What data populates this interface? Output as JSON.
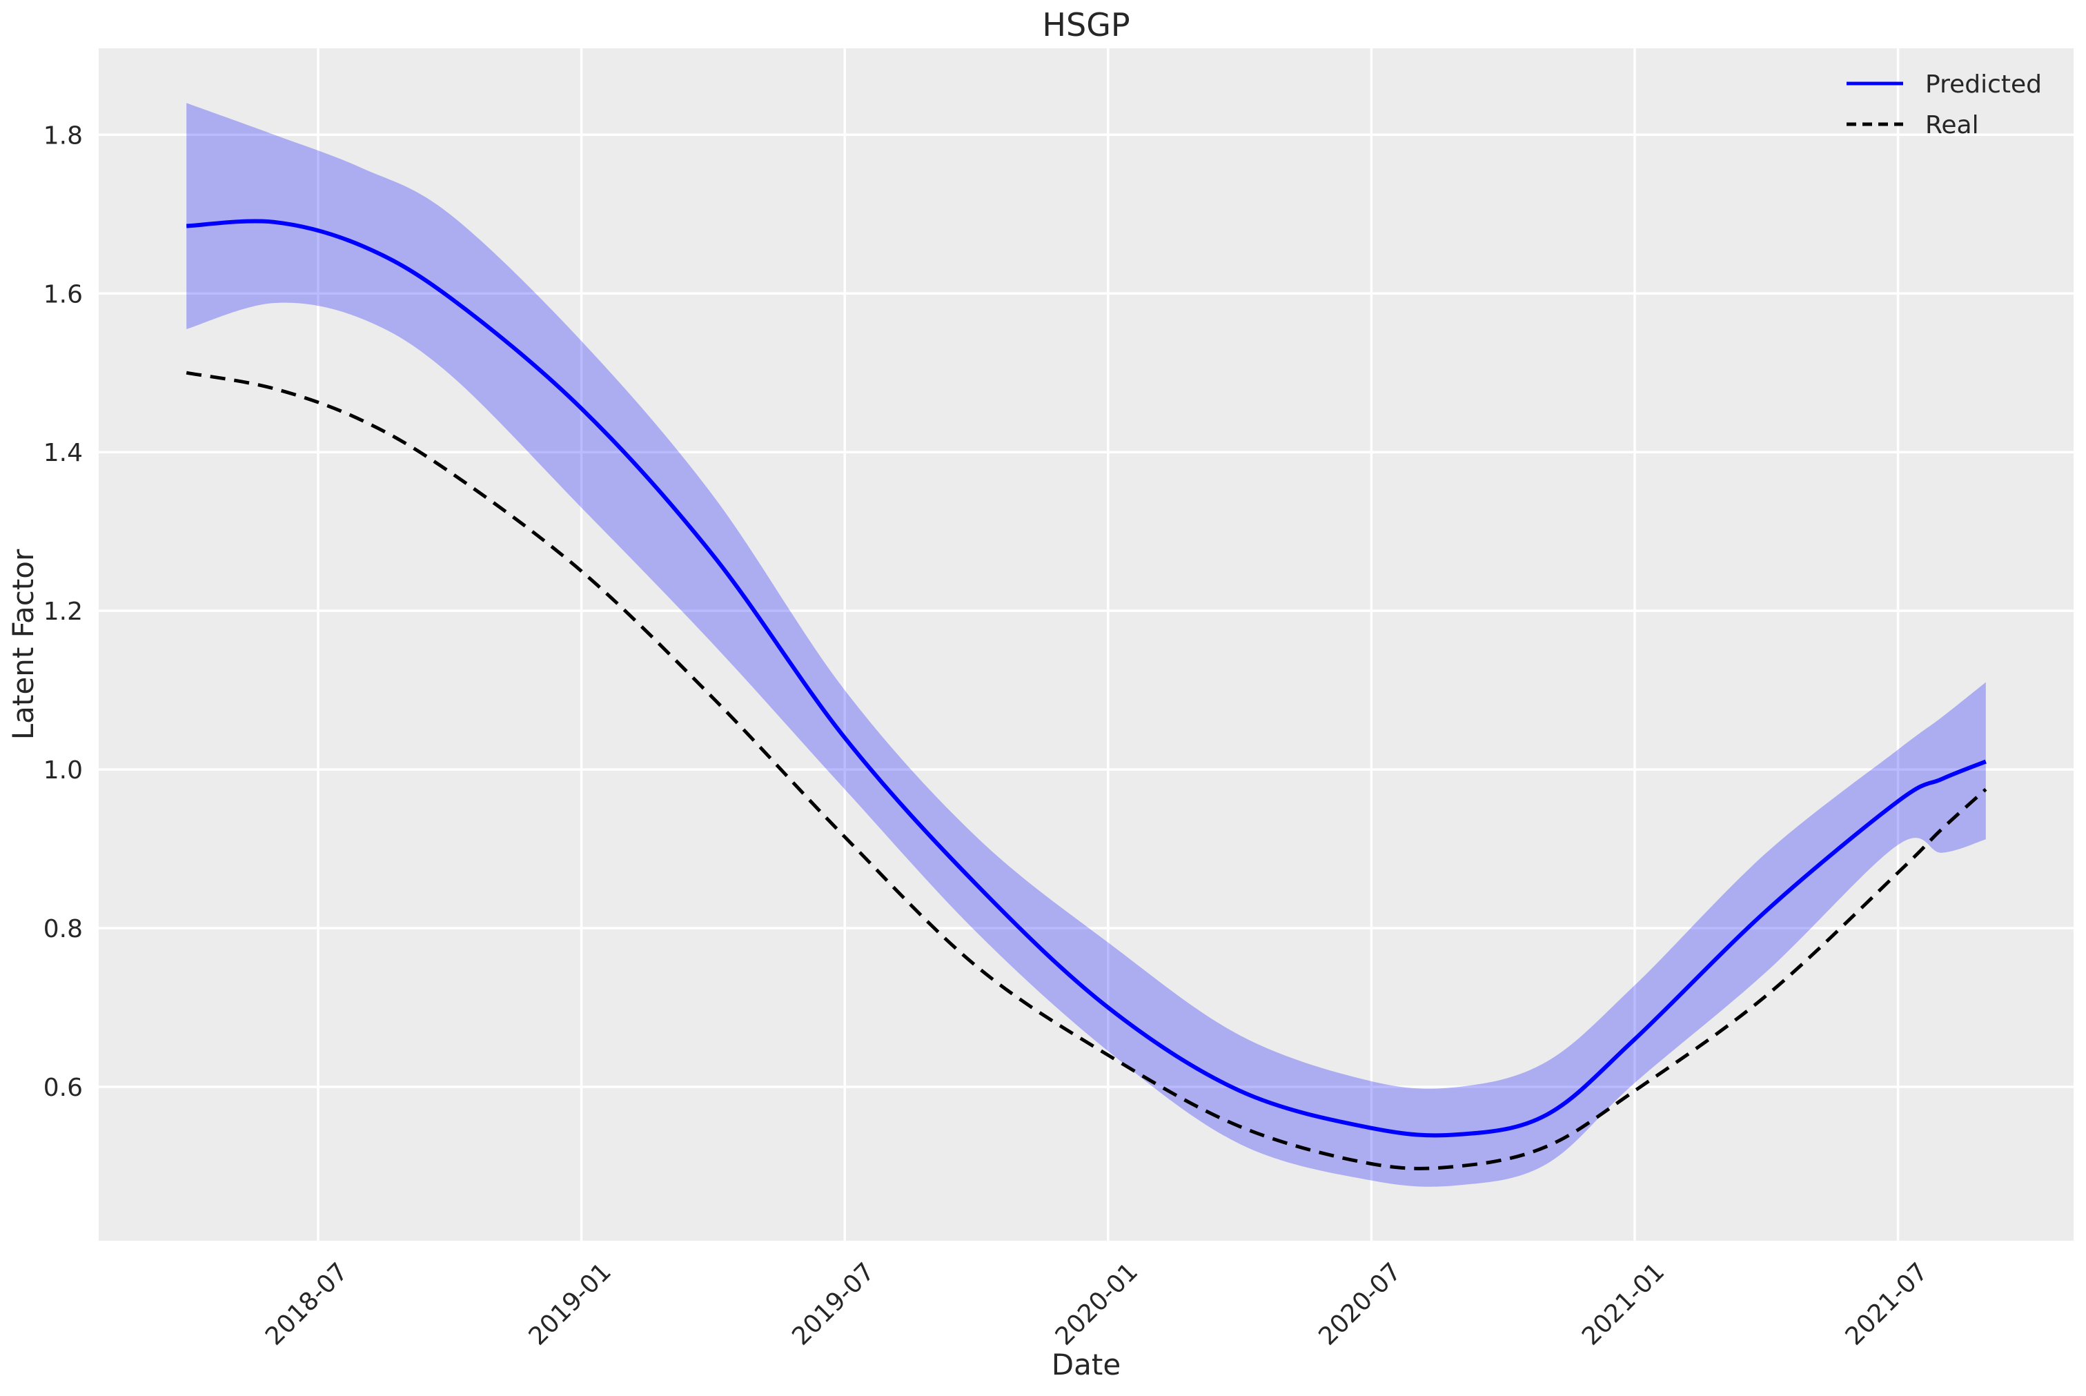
{
  "title": "HSGP",
  "legend": {
    "items": [
      {
        "label": "Predicted",
        "line_style": "solid",
        "color": "#0000ff"
      },
      {
        "label": "Real",
        "line_style": "dashed",
        "color": "#000000"
      }
    ],
    "position": "upper right"
  },
  "colors": {
    "figure_bg": "#ffffff",
    "plot_bg": "#ececec",
    "grid": "#ffffff",
    "predicted": "#0000ff",
    "real": "#000000",
    "band": "rgba(0,0,255,0.27)",
    "text": "#262626"
  },
  "chart_data": {
    "type": "line",
    "title": "HSGP",
    "xlabel": "Date",
    "ylabel": "Latent Factor",
    "grid": true,
    "legend_position": "upper right",
    "x_tick_labels": [
      "2018-07",
      "2019-01",
      "2019-07",
      "2020-01",
      "2020-07",
      "2021-01",
      "2021-07"
    ],
    "y_ticks": [
      0.6,
      0.8,
      1.0,
      1.2,
      1.4,
      1.6,
      1.8
    ],
    "xlim": [
      "2018-02",
      "2021-11"
    ],
    "ylim": [
      0.406,
      1.909
    ],
    "x": [
      "2018-04",
      "2018-06",
      "2018-08",
      "2018-10",
      "2019-01",
      "2019-04",
      "2019-07",
      "2019-10",
      "2020-01",
      "2020-04",
      "2020-07",
      "2020-09",
      "2020-11",
      "2021-01",
      "2021-04",
      "2021-07",
      "2021-08",
      "2021-09"
    ],
    "series": [
      {
        "name": "Predicted",
        "style": "solid",
        "color": "#0000ff",
        "values": [
          1.685,
          1.69,
          1.66,
          1.595,
          1.455,
          1.27,
          1.04,
          0.855,
          0.7,
          0.595,
          0.548,
          0.54,
          0.565,
          0.66,
          0.822,
          0.96,
          0.988,
          1.01
        ]
      },
      {
        "name": "Real",
        "style": "dashed",
        "color": "#000000",
        "values": [
          1.5,
          1.48,
          1.44,
          1.375,
          1.25,
          1.09,
          0.915,
          0.752,
          0.64,
          0.55,
          0.503,
          0.5,
          0.525,
          0.595,
          0.715,
          0.87,
          0.925,
          0.975
        ]
      }
    ],
    "uncertainty_band": {
      "series": "Predicted",
      "color": "rgba(0,0,255,0.27)",
      "upper": [
        1.84,
        1.8,
        1.758,
        1.7,
        1.54,
        1.345,
        1.1,
        0.915,
        0.782,
        0.665,
        0.607,
        0.6,
        0.632,
        0.728,
        0.895,
        1.025,
        1.066,
        1.11
      ],
      "lower": [
        1.555,
        1.588,
        1.568,
        1.498,
        1.33,
        1.158,
        0.975,
        0.795,
        0.645,
        0.528,
        0.482,
        0.476,
        0.503,
        0.605,
        0.745,
        0.905,
        0.895,
        0.912
      ]
    }
  }
}
